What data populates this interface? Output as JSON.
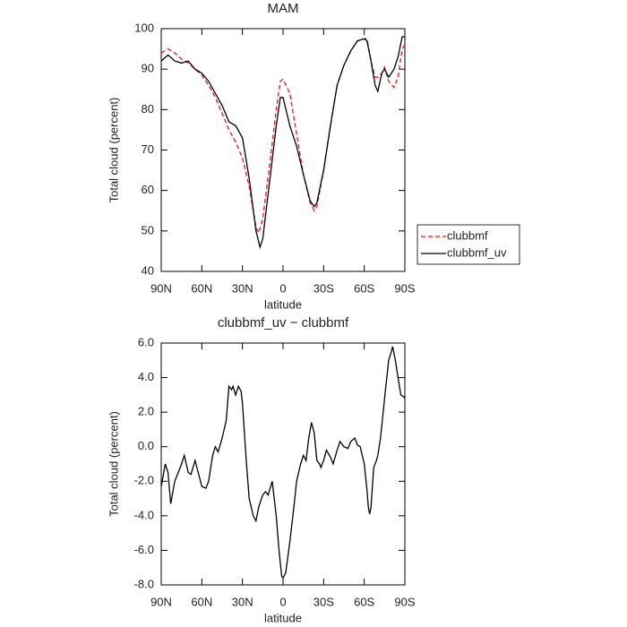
{
  "chart_data": [
    {
      "type": "line",
      "title": "MAM",
      "xlabel": "latitude",
      "ylabel": "Total cloud (percent)",
      "xlim": [
        90,
        -90
      ],
      "xticks": [
        {
          "value": 90,
          "label": "90N"
        },
        {
          "value": 60,
          "label": "60N"
        },
        {
          "value": 30,
          "label": "30N"
        },
        0,
        {
          "value": -30,
          "label": "30S"
        },
        {
          "value": -60,
          "label": "60S"
        },
        {
          "value": -90,
          "label": "90S"
        }
      ],
      "ylim": [
        40,
        100
      ],
      "yticks": [
        40,
        50,
        60,
        70,
        80,
        90,
        100
      ],
      "legend": "right",
      "series": [
        {
          "name": "clubbmf",
          "color": "#e8141c",
          "line_style": "dashed",
          "x": [
            90,
            85,
            80,
            75,
            70,
            65,
            60,
            55,
            50,
            45,
            40,
            35,
            30,
            25,
            20,
            18,
            15,
            10,
            5,
            2,
            0,
            -5,
            -10,
            -15,
            -20,
            -23,
            -25,
            -30,
            -35,
            -40,
            -45,
            -50,
            -55,
            -60,
            -62,
            -65,
            -68,
            -70,
            -73,
            -75,
            -78,
            -82,
            -85,
            -88,
            -90
          ],
          "values": [
            94,
            95,
            94,
            92.5,
            91.5,
            90,
            88.5,
            86,
            83,
            79,
            75,
            72,
            68,
            61,
            51,
            49.5,
            53,
            66,
            80,
            87,
            87.5,
            84,
            74,
            64,
            57,
            55,
            56,
            65,
            76,
            86,
            91,
            94.5,
            97,
            97.5,
            97.5,
            92,
            88,
            88,
            89,
            90.5,
            87,
            85.5,
            88,
            95,
            96
          ]
        },
        {
          "name": "clubbmf_uv",
          "color": "#000000",
          "line_style": "solid",
          "x": [
            90,
            85,
            80,
            75,
            70,
            65,
            60,
            55,
            50,
            45,
            40,
            35,
            30,
            25,
            20,
            17,
            15,
            10,
            5,
            2,
            0,
            -5,
            -10,
            -15,
            -20,
            -23,
            -25,
            -30,
            -35,
            -40,
            -45,
            -50,
            -55,
            -60,
            -62,
            -65,
            -68,
            -70,
            -73,
            -75,
            -78,
            -82,
            -85,
            -88,
            -90
          ],
          "values": [
            92,
            93.5,
            92,
            91.5,
            92,
            90,
            89,
            87,
            84,
            81,
            77,
            76,
            73,
            63,
            50,
            46,
            48,
            62,
            76,
            83,
            83,
            76,
            71,
            64,
            57.5,
            56,
            57,
            65,
            76,
            86,
            91,
            94.5,
            97,
            97.5,
            97,
            92,
            86,
            84.5,
            89,
            90,
            88,
            90,
            93,
            98,
            98
          ]
        }
      ]
    },
    {
      "type": "line",
      "title": "clubbmf_uv − clubbmf",
      "xlabel": "latitude",
      "ylabel": "Total cloud (percent)",
      "xlim": [
        90,
        -90
      ],
      "xticks": [
        {
          "value": 90,
          "label": "90N"
        },
        {
          "value": 60,
          "label": "60N"
        },
        {
          "value": 30,
          "label": "30N"
        },
        0,
        {
          "value": -30,
          "label": "30S"
        },
        {
          "value": -60,
          "label": "60S"
        },
        {
          "value": -90,
          "label": "90S"
        }
      ],
      "ylim": [
        -8,
        6
      ],
      "yticks": [
        {
          "value": -8,
          "label": "-8.0"
        },
        {
          "value": -6,
          "label": "-6.0"
        },
        {
          "value": -4,
          "label": "-4.0"
        },
        {
          "value": -2,
          "label": "-2.0"
        },
        {
          "value": 0,
          "label": "0.0"
        },
        {
          "value": 2,
          "label": "2.0"
        },
        {
          "value": 4,
          "label": "4.0"
        },
        {
          "value": 6,
          "label": "6.0"
        }
      ],
      "series": [
        {
          "color": "#000000",
          "line_style": "solid",
          "x": [
            90,
            87,
            85,
            83,
            80,
            75,
            73,
            70,
            68,
            65,
            62,
            60,
            57,
            55,
            52,
            50,
            48,
            45,
            42,
            40,
            38,
            37,
            35,
            33,
            31,
            30,
            27,
            25,
            22,
            20,
            18,
            15,
            13,
            11,
            8,
            5,
            3,
            1,
            0,
            -2,
            -5,
            -8,
            -10,
            -13,
            -15,
            -17,
            -19,
            -21,
            -23,
            -25,
            -27,
            -28,
            -30,
            -32,
            -35,
            -37,
            -40,
            -42,
            -45,
            -48,
            -50,
            -53,
            -55,
            -57,
            -60,
            -62,
            -63,
            -64,
            -65,
            -67,
            -69,
            -70,
            -72,
            -74,
            -76,
            -78,
            -80,
            -81,
            -83,
            -85,
            -87,
            -89,
            -90
          ],
          "values": [
            -2.3,
            -1,
            -1.5,
            -3.3,
            -2,
            -1,
            -0.5,
            -1.5,
            -1.6,
            -0.8,
            -1.7,
            -2.3,
            -2.4,
            -2,
            -0.5,
            0,
            -0.3,
            0.5,
            1.5,
            3.5,
            3.3,
            3.5,
            3,
            3.5,
            3.2,
            2.5,
            -1,
            -3,
            -4,
            -4.3,
            -3.5,
            -2.8,
            -2.6,
            -2.8,
            -2,
            -4,
            -6,
            -7.5,
            -7.6,
            -7.3,
            -5.5,
            -3.5,
            -2,
            -1,
            -0.5,
            -0.8,
            0.5,
            1.4,
            0.8,
            -0.8,
            -1,
            -1.2,
            -0.8,
            -0.2,
            -0.6,
            -1,
            -0.2,
            0.3,
            0,
            -0.1,
            0.3,
            0.5,
            0.1,
            0,
            -1,
            -2.5,
            -3.5,
            -3.9,
            -3.5,
            -1.2,
            -0.8,
            -0.5,
            0.5,
            2,
            3.5,
            5,
            5.5,
            5.8,
            5,
            4,
            3,
            2.9,
            2.8
          ]
        }
      ]
    }
  ]
}
